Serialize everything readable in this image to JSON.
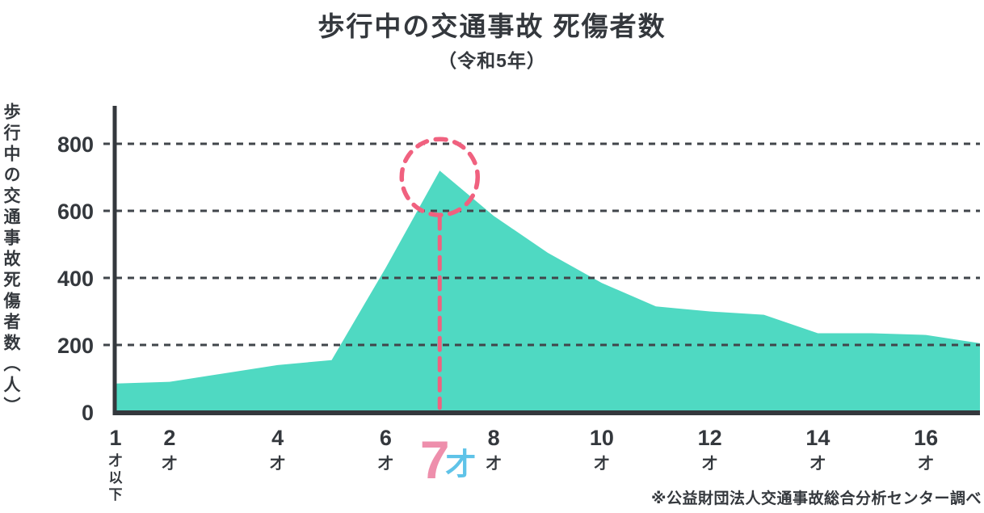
{
  "chart_data": {
    "type": "area",
    "title": "歩行中の交通事故 死傷者数",
    "subtitle": "（令和5年）",
    "ylabel": "歩行中の交通事故死傷者数（人）",
    "source_note": "※公益財団法人交通事故総合分析センター調べ",
    "x": [
      1,
      2,
      3,
      4,
      5,
      6,
      7,
      8,
      9,
      10,
      11,
      12,
      13,
      14,
      15,
      16,
      17
    ],
    "values": [
      85,
      90,
      115,
      140,
      155,
      430,
      720,
      585,
      475,
      385,
      315,
      300,
      290,
      235,
      235,
      230,
      205
    ],
    "ylim": [
      0,
      870
    ],
    "yticks": [
      0,
      200,
      400,
      600,
      800
    ],
    "xticks": [
      {
        "age": 1,
        "num": "1",
        "suffix": "才以下",
        "highlight": false
      },
      {
        "age": 2,
        "num": "2",
        "suffix": "才",
        "highlight": false
      },
      {
        "age": 4,
        "num": "4",
        "suffix": "才",
        "highlight": false
      },
      {
        "age": 6,
        "num": "6",
        "suffix": "才",
        "highlight": false
      },
      {
        "age": 7,
        "num": "7",
        "suffix": "才",
        "highlight": true
      },
      {
        "age": 8,
        "num": "8",
        "suffix": "才",
        "highlight": false
      },
      {
        "age": 10,
        "num": "10",
        "suffix": "才",
        "highlight": false
      },
      {
        "age": 12,
        "num": "12",
        "suffix": "才",
        "highlight": false
      },
      {
        "age": 14,
        "num": "14",
        "suffix": "才",
        "highlight": false
      },
      {
        "age": 16,
        "num": "16",
        "suffix": "才",
        "highlight": false
      }
    ],
    "highlight": {
      "age": 7,
      "value": 720,
      "label": "7才"
    },
    "grid": {
      "horizontal": true,
      "style": "dashed"
    },
    "legend": "none",
    "colors": {
      "area": "#4FD9C2",
      "axis": "#34383D",
      "grid": "#41464B",
      "text": "#34383D",
      "highlight": "#F0617F",
      "highlight_num": "#EE8FAC",
      "highlight_suffix": "#5FC3E8"
    }
  }
}
